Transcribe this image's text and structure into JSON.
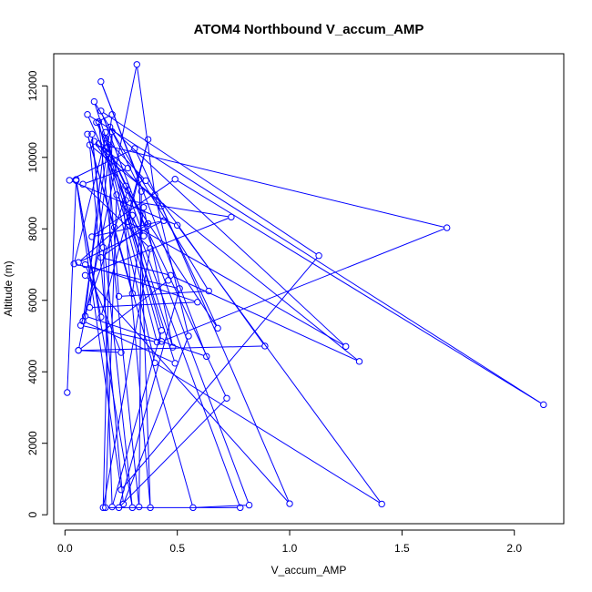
{
  "chart_data": {
    "type": "line",
    "title": "ATOM4 Northbound V_accum_AMP",
    "xlabel": "V_accum_AMP",
    "ylabel": "Altitude (m)",
    "xlim": [
      -0.05,
      2.22
    ],
    "ylim": [
      -250,
      12900
    ],
    "x_ticks": [
      0.0,
      0.5,
      1.0,
      1.5,
      2.0
    ],
    "x_tick_labels": [
      "0.0",
      "0.5",
      "1.0",
      "1.5",
      "2.0"
    ],
    "y_ticks": [
      0,
      2000,
      4000,
      6000,
      8000,
      10000,
      12000
    ],
    "y_tick_labels": [
      "0",
      "2000",
      "4000",
      "6000",
      "8000",
      "10000",
      "12000"
    ],
    "grid": false,
    "color": "#0000ff",
    "marker": "open-circle",
    "series": [
      {
        "x": [
          0.01,
          0.05,
          0.3,
          0.12,
          0.17,
          0.21,
          0.43,
          0.18,
          0.09,
          0.63,
          0.16,
          0.33,
          0.38,
          0.26,
          0.49,
          0.08,
          0.21,
          0.14,
          0.72,
          0.24,
          0.51,
          0.04,
          0.18,
          0.36,
          0.89,
          0.06,
          0.32,
          0.4,
          0.55,
          0.26,
          0.11,
          1.31,
          0.47,
          0.16,
          0.37,
          0.28,
          0.07,
          0.41,
          0.19,
          0.24,
          0.64,
          0.13,
          0.48,
          0.35,
          0.3,
          0.1,
          0.22,
          0.57,
          0.82,
          0.16,
          1.13,
          0.25,
          0.05,
          0.16,
          0.37,
          0.28,
          1.25,
          0.2,
          0.34,
          0.33,
          0.15,
          0.4,
          1.41,
          0.5,
          0.02,
          0.31,
          0.68,
          0.13,
          0.43,
          1.0,
          0.09,
          0.74,
          0.27,
          0.1,
          2.13,
          0.49,
          0.12,
          0.44,
          0.06,
          0.3,
          0.78,
          0.18,
          0.23,
          0.35,
          0.27,
          0.19,
          0.43,
          1.7,
          0.15,
          0.28,
          0.08,
          0.38,
          0.17,
          0.21,
          0.11,
          0.59,
          0.09,
          0.25,
          0.06,
          0.46
        ],
        "y": [
          3420,
          9380,
          200,
          10650,
          7480,
          220,
          5160,
          10700,
          5560,
          4430,
          12120,
          9380,
          200,
          8700,
          4240,
          5420,
          11200,
          10980,
          3260,
          200,
          6330,
          7020,
          10540,
          9350,
          4720,
          4600,
          12600,
          8950,
          5000,
          300,
          10350,
          4290,
          6700,
          7200,
          8150,
          9080,
          5300,
          4830,
          10110,
          6110,
          6260,
          11560,
          4690,
          8600,
          6190,
          10650,
          8040,
          200,
          270,
          11300,
          7250,
          700,
          9350,
          5530,
          10500,
          8200,
          4710,
          10850,
          9050,
          220,
          11000,
          4250,
          300,
          8100,
          9360,
          10250,
          5220,
          10450,
          8640,
          310,
          6700,
          8330,
          8800,
          11200,
          3080,
          9390,
          7780,
          8230,
          7060,
          8380,
          200,
          200,
          8950,
          7800,
          9200,
          10300,
          4850,
          8030,
          10380,
          9700,
          9250,
          7450,
          200,
          10720,
          5800,
          5950,
          7000,
          4540,
          4600,
          6560
        ]
      }
    ]
  }
}
